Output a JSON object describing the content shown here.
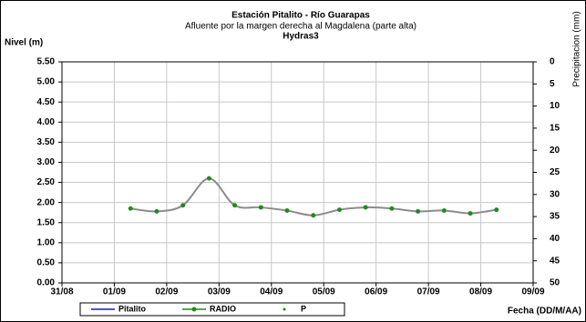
{
  "chart_data": {
    "type": "line",
    "title": "Estación Pitalito  - Río Guarapas",
    "subtitle": "Afluente por la margen derecha al Magdalena (parte alta)",
    "station_code": "Hydras3",
    "y_label": "Nivel (m)",
    "y2_label": "Precipitacion (mm)",
    "x_label": "Fecha (DD/M/AA)",
    "xlim": [
      0,
      9
    ],
    "xticks": [
      {
        "value": 0,
        "label": "31/08"
      },
      {
        "value": 1,
        "label": "01/09"
      },
      {
        "value": 2,
        "label": "02/09"
      },
      {
        "value": 3,
        "label": "03/09"
      },
      {
        "value": 4,
        "label": "04/09"
      },
      {
        "value": 5,
        "label": "05/09"
      },
      {
        "value": 6,
        "label": "06/09"
      },
      {
        "value": 7,
        "label": "07/09"
      },
      {
        "value": 8,
        "label": "08/09"
      },
      {
        "value": 9,
        "label": "09/09"
      }
    ],
    "ylim": [
      0,
      5.5
    ],
    "yticks": [
      {
        "value": 0,
        "label": "0.00"
      },
      {
        "value": 0.5,
        "label": "0.50"
      },
      {
        "value": 1,
        "label": "1.00"
      },
      {
        "value": 1.5,
        "label": "1.50"
      },
      {
        "value": 2,
        "label": "2.00"
      },
      {
        "value": 2.5,
        "label": "2.50"
      },
      {
        "value": 3,
        "label": "3.00"
      },
      {
        "value": 3.5,
        "label": "3.50"
      },
      {
        "value": 4,
        "label": "4.00"
      },
      {
        "value": 4.5,
        "label": "4.50"
      },
      {
        "value": 5,
        "label": "5.00"
      },
      {
        "value": 5.5,
        "label": "5.50"
      }
    ],
    "y2lim": [
      50,
      0
    ],
    "y2_inverted": true,
    "y2ticks": [
      0,
      5,
      10,
      15,
      20,
      25,
      30,
      35,
      40,
      45,
      50
    ],
    "grid": true,
    "series": [
      {
        "name": "Pitalito",
        "color": "#1f1fa0",
        "x": [],
        "values": []
      },
      {
        "name": "RADIO",
        "color": "#1e8c1e",
        "line_color": "#8c8c8c",
        "x": [
          1.31,
          1.81,
          2.31,
          2.81,
          3.3,
          3.8,
          4.3,
          4.8,
          5.3,
          5.8,
          6.3,
          6.8,
          7.3,
          7.8,
          8.3
        ],
        "values": [
          1.85,
          1.78,
          1.93,
          2.6,
          1.93,
          1.88,
          1.8,
          1.68,
          1.82,
          1.88,
          1.85,
          1.78,
          1.8,
          1.73,
          1.82
        ]
      },
      {
        "name": "P",
        "color": "#1e8c1e",
        "axis": "y2",
        "x": [],
        "values": []
      }
    ]
  }
}
